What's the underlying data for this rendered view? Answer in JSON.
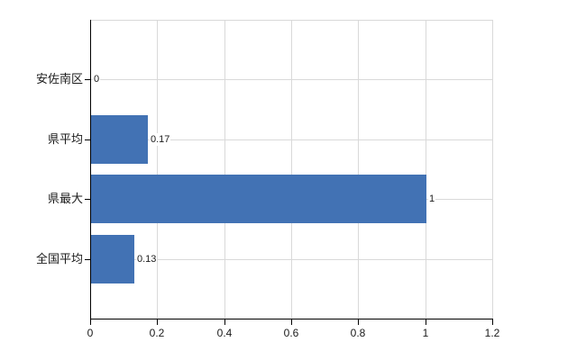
{
  "chart_data": {
    "type": "bar",
    "orientation": "horizontal",
    "title": "",
    "xlabel": "",
    "ylabel": "",
    "categories": [
      "安佐南区",
      "県平均",
      "県最大",
      "全国平均"
    ],
    "values": [
      0,
      0.17,
      1,
      0.13
    ],
    "value_labels": [
      "0",
      "0.17",
      "1",
      "0.13"
    ],
    "xlim": [
      0,
      1.2
    ],
    "x_ticks": [
      0,
      0.2,
      0.4,
      0.6,
      0.8,
      1,
      1.2
    ],
    "x_tick_labels": [
      "0",
      "0.2",
      "0.4",
      "0.6",
      "0.8",
      "1",
      "1.2"
    ],
    "grid": true,
    "legend": false,
    "colors": {
      "bar": "#4272b4",
      "grid": "#d9d9d9",
      "axis": "#000000",
      "text": "#1a1a1a",
      "background": "#ffffff"
    }
  }
}
